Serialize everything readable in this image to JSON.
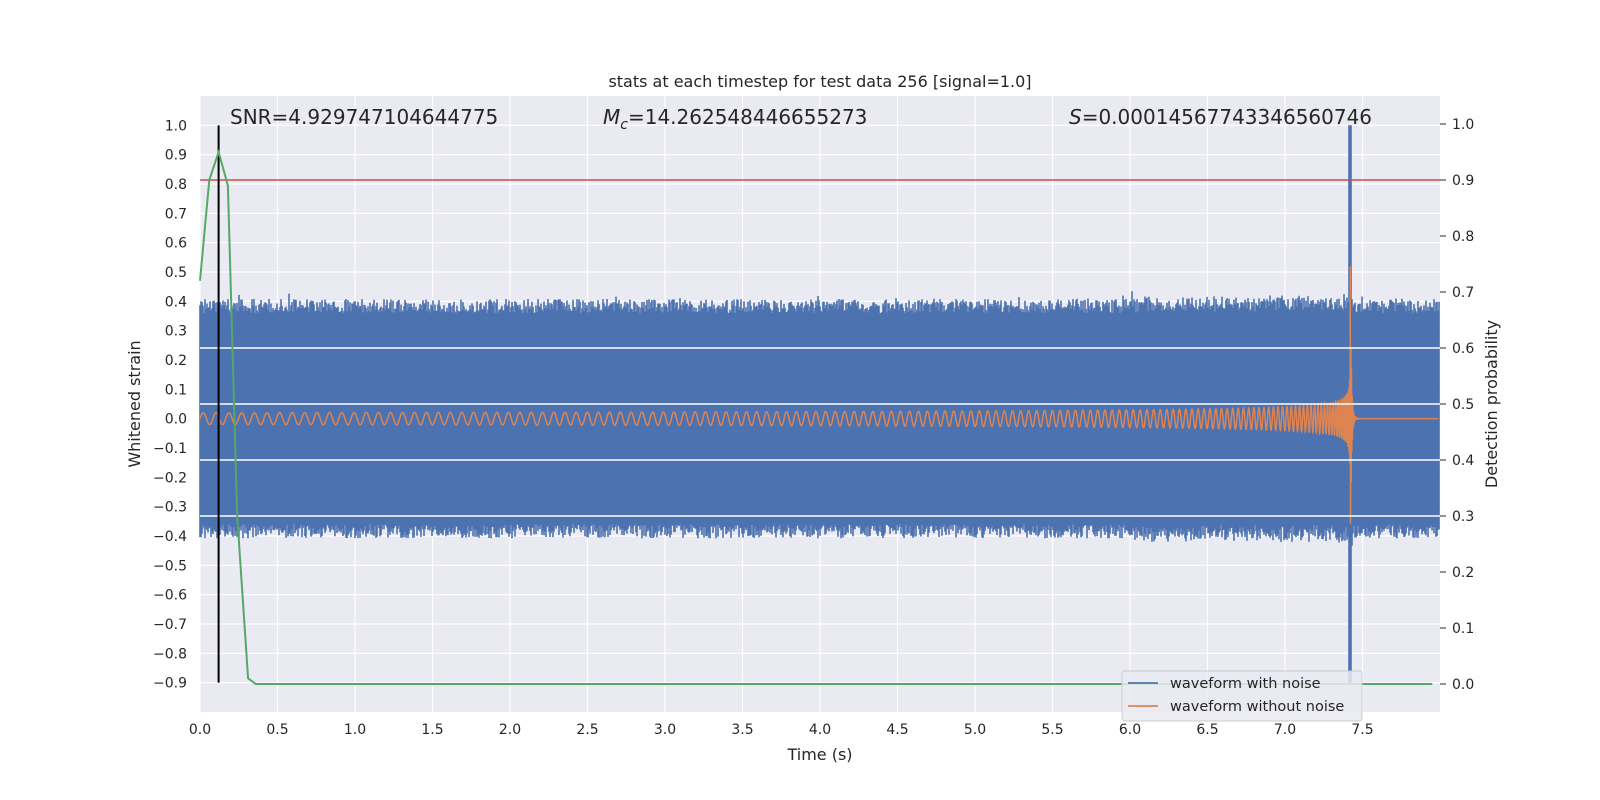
{
  "chart_data": {
    "type": "line",
    "title": "stats at each timestep for test data 256 [signal=1.0]",
    "xlabel": "Time (s)",
    "ylabel_left": "Whitened strain",
    "ylabel_right": "Detection probability",
    "xlim": [
      0.0,
      8.0
    ],
    "ylim_left": [
      -1.0,
      1.1
    ],
    "ylim_right": [
      -0.05,
      1.05
    ],
    "x_ticks": [
      "0.0",
      "0.5",
      "1.0",
      "1.5",
      "2.0",
      "2.5",
      "3.0",
      "3.5",
      "4.0",
      "4.5",
      "5.0",
      "5.5",
      "6.0",
      "6.5",
      "7.0",
      "7.5"
    ],
    "y_ticks_left": [
      "1.0",
      "0.9",
      "0.8",
      "0.7",
      "0.6",
      "0.5",
      "0.4",
      "0.3",
      "0.2",
      "0.1",
      "0.0",
      "−0.1",
      "−0.2",
      "−0.3",
      "−0.4",
      "−0.5",
      "−0.6",
      "−0.7",
      "−0.8",
      "−0.9"
    ],
    "y_ticks_right": [
      "1.0",
      "0.9",
      "0.8",
      "0.7",
      "0.6",
      "0.5",
      "0.4",
      "0.3",
      "0.2",
      "0.1",
      "0.0"
    ],
    "grid": true,
    "legend_position": "bottom-right",
    "annotations": {
      "snr": "SNR=4.929747104644775",
      "mc_symbol": "M",
      "mc_sub": "c",
      "mc_value": "=14.262548446655273",
      "s_symbol": "S",
      "s_value": "=0.00014567743346560746"
    },
    "series": [
      {
        "name": "waveform with noise",
        "color": "#4c72b0",
        "axis": "left",
        "noise_amplitude": 0.4,
        "merger_time": 7.42,
        "merger_peak": 1.0
      },
      {
        "name": "waveform without noise",
        "color": "#dd8452",
        "axis": "left",
        "start_amplitude": 0.02,
        "start_freq": 12,
        "merger_time": 7.42,
        "peak_amplitude": 0.6
      }
    ],
    "detection_probability": {
      "color": "#55a868",
      "axis": "right",
      "x": [
        0.0,
        0.06,
        0.12,
        0.18,
        0.24,
        0.31,
        0.36,
        0.4,
        7.95
      ],
      "y": [
        0.72,
        0.9,
        0.95,
        0.89,
        0.3,
        0.01,
        0.0,
        0.0,
        0.0
      ]
    },
    "threshold_line": {
      "color": "#c44e52",
      "axis": "right",
      "y": 0.9
    },
    "marker_line": {
      "color": "#000000",
      "x": 0.12,
      "y_range_left": [
        -0.9,
        1.0
      ]
    },
    "right_axis_grid": [
      0.6,
      0.5,
      0.4,
      0.3
    ]
  }
}
